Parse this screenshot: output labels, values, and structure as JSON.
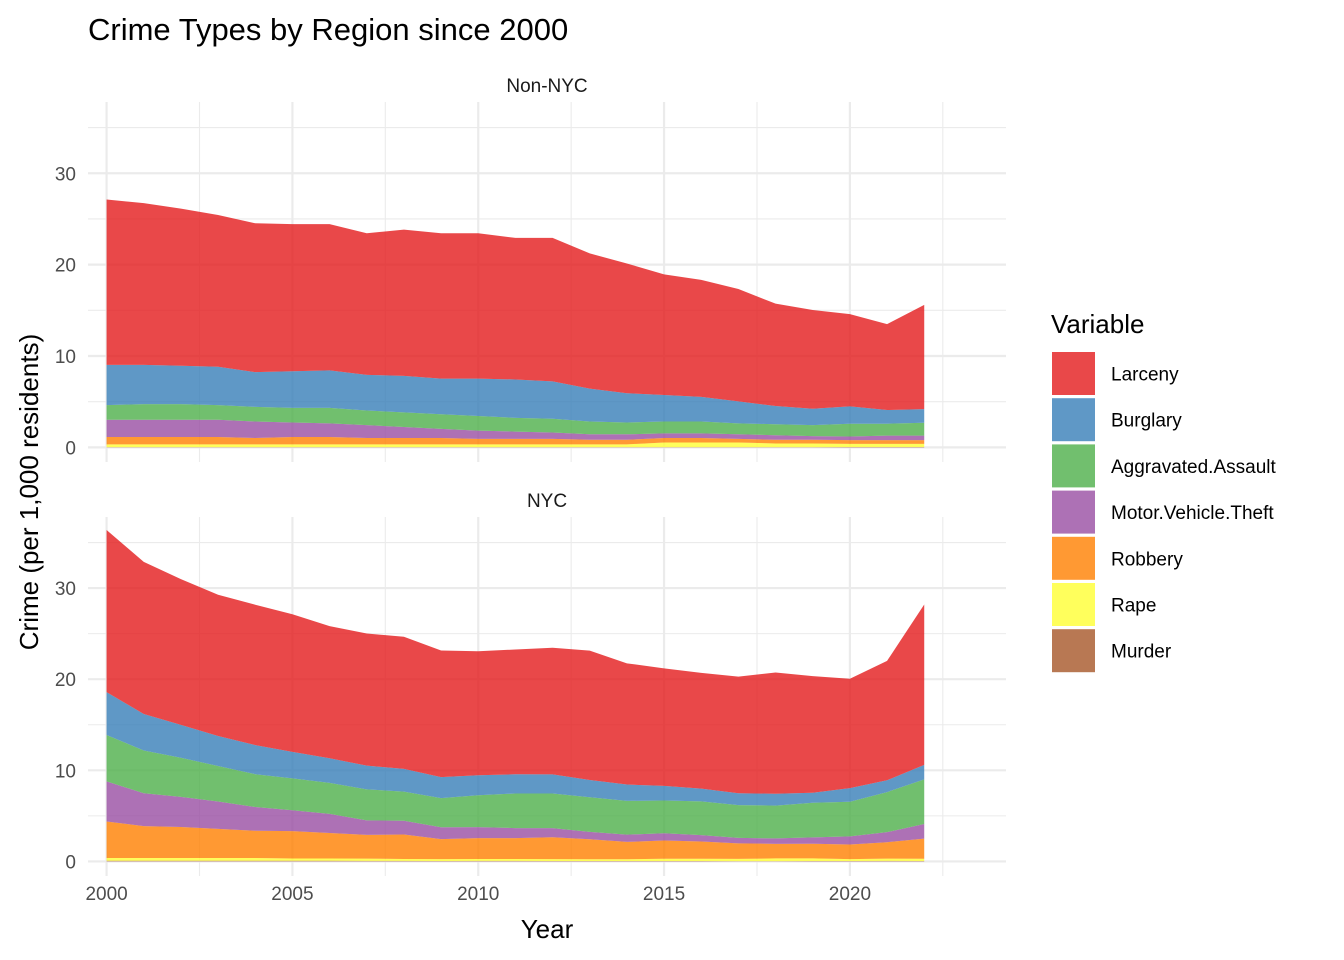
{
  "chart_data": {
    "type": "area",
    "stacked": true,
    "title": "Crime Types by Region since 2000",
    "xlabel": "Year",
    "ylabel": "Crime (per 1,000 residents)",
    "xlim": [
      1999.5,
      2024.2
    ],
    "ylim": [
      -1.6,
      37.8
    ],
    "x_ticks": [
      2000,
      2005,
      2010,
      2015,
      2020
    ],
    "y_ticks": [
      0,
      10,
      20,
      30
    ],
    "grid": true,
    "legend": {
      "title": "Variable",
      "position": "right",
      "items": [
        {
          "name": "Larceny",
          "color": "#E41A1C"
        },
        {
          "name": "Burglary",
          "color": "#377EB8"
        },
        {
          "name": "Aggravated.Assault",
          "color": "#4DAF4A"
        },
        {
          "name": "Motor.Vehicle.Theft",
          "color": "#984EA3"
        },
        {
          "name": "Robbery",
          "color": "#FF7F00"
        },
        {
          "name": "Rape",
          "color": "#FFFF33"
        },
        {
          "name": "Murder",
          "color": "#A65628"
        }
      ]
    },
    "x": [
      2000,
      2001,
      2002,
      2003,
      2004,
      2005,
      2006,
      2007,
      2008,
      2009,
      2010,
      2011,
      2012,
      2013,
      2014,
      2015,
      2016,
      2017,
      2018,
      2019,
      2020,
      2021,
      2022
    ],
    "stack_order": [
      "Murder",
      "Rape",
      "Robbery",
      "Motor.Vehicle.Theft",
      "Aggravated.Assault",
      "Burglary",
      "Larceny"
    ],
    "panels": [
      {
        "label": "Non-NYC",
        "series": [
          {
            "name": "Murder",
            "values": [
              0.03,
              0.03,
              0.03,
              0.03,
              0.03,
              0.03,
              0.03,
              0.03,
              0.03,
              0.03,
              0.03,
              0.03,
              0.03,
              0.03,
              0.03,
              0.03,
              0.03,
              0.03,
              0.03,
              0.03,
              0.04,
              0.04,
              0.04
            ]
          },
          {
            "name": "Rape",
            "values": [
              0.3,
              0.3,
              0.3,
              0.3,
              0.3,
              0.3,
              0.3,
              0.3,
              0.3,
              0.3,
              0.3,
              0.3,
              0.3,
              0.3,
              0.3,
              0.5,
              0.5,
              0.5,
              0.4,
              0.4,
              0.35,
              0.35,
              0.35
            ]
          },
          {
            "name": "Robbery",
            "values": [
              0.8,
              0.8,
              0.8,
              0.8,
              0.7,
              0.8,
              0.8,
              0.7,
              0.7,
              0.7,
              0.6,
              0.6,
              0.6,
              0.5,
              0.5,
              0.5,
              0.5,
              0.4,
              0.4,
              0.4,
              0.4,
              0.4,
              0.4
            ]
          },
          {
            "name": "Motor.Vehicle.Theft",
            "values": [
              1.9,
              1.9,
              1.9,
              1.9,
              1.8,
              1.6,
              1.5,
              1.4,
              1.2,
              1.0,
              0.9,
              0.8,
              0.7,
              0.6,
              0.6,
              0.5,
              0.5,
              0.5,
              0.5,
              0.4,
              0.4,
              0.5,
              0.5
            ]
          },
          {
            "name": "Aggravated.Assault",
            "values": [
              1.6,
              1.7,
              1.7,
              1.6,
              1.6,
              1.6,
              1.7,
              1.6,
              1.6,
              1.6,
              1.6,
              1.5,
              1.5,
              1.4,
              1.3,
              1.3,
              1.3,
              1.2,
              1.2,
              1.2,
              1.4,
              1.3,
              1.4
            ]
          },
          {
            "name": "Burglary",
            "values": [
              4.4,
              4.3,
              4.2,
              4.2,
              3.8,
              4.0,
              4.1,
              3.9,
              4.0,
              3.9,
              4.1,
              4.2,
              4.1,
              3.6,
              3.2,
              2.9,
              2.7,
              2.4,
              2.0,
              1.8,
              1.9,
              1.5,
              1.5
            ]
          },
          {
            "name": "Larceny",
            "values": [
              18.1,
              17.7,
              17.2,
              16.6,
              16.3,
              16.1,
              16.0,
              15.5,
              16.0,
              15.9,
              15.9,
              15.5,
              15.7,
              14.8,
              14.2,
              13.2,
              12.8,
              12.3,
              11.2,
              10.8,
              10.1,
              9.4,
              11.4
            ]
          }
        ]
      },
      {
        "label": "NYC",
        "series": [
          {
            "name": "Murder",
            "values": [
              0.08,
              0.08,
              0.08,
              0.07,
              0.07,
              0.07,
              0.07,
              0.06,
              0.06,
              0.05,
              0.06,
              0.06,
              0.05,
              0.04,
              0.04,
              0.04,
              0.04,
              0.03,
              0.03,
              0.04,
              0.05,
              0.06,
              0.05
            ]
          },
          {
            "name": "Rape",
            "values": [
              0.3,
              0.3,
              0.3,
              0.3,
              0.3,
              0.25,
              0.25,
              0.25,
              0.2,
              0.2,
              0.2,
              0.2,
              0.2,
              0.2,
              0.2,
              0.25,
              0.25,
              0.25,
              0.3,
              0.3,
              0.2,
              0.25,
              0.25
            ]
          },
          {
            "name": "Robbery",
            "values": [
              4.0,
              3.5,
              3.4,
              3.2,
              3.0,
              3.0,
              2.8,
              2.6,
              2.7,
              2.2,
              2.3,
              2.3,
              2.4,
              2.2,
              1.9,
              2.0,
              1.9,
              1.7,
              1.6,
              1.6,
              1.6,
              1.8,
              2.2
            ]
          },
          {
            "name": "Motor.Vehicle.Theft",
            "values": [
              4.4,
              3.6,
              3.3,
              3.0,
              2.6,
              2.3,
              2.1,
              1.6,
              1.5,
              1.3,
              1.2,
              1.1,
              1.0,
              0.8,
              0.8,
              0.8,
              0.7,
              0.6,
              0.6,
              0.7,
              0.9,
              1.1,
              1.6
            ]
          },
          {
            "name": "Aggravated.Assault",
            "values": [
              5.1,
              4.7,
              4.3,
              3.9,
              3.6,
              3.5,
              3.4,
              3.4,
              3.2,
              3.2,
              3.5,
              3.8,
              3.8,
              3.8,
              3.7,
              3.6,
              3.7,
              3.6,
              3.6,
              3.8,
              3.8,
              4.4,
              4.9
            ]
          },
          {
            "name": "Burglary",
            "values": [
              4.7,
              4.0,
              3.6,
              3.3,
              3.2,
              2.9,
              2.7,
              2.6,
              2.5,
              2.3,
              2.2,
              2.1,
              2.1,
              1.9,
              1.8,
              1.6,
              1.4,
              1.3,
              1.3,
              1.1,
              1.5,
              1.3,
              1.6
            ]
          },
          {
            "name": "Larceny",
            "values": [
              17.8,
              16.7,
              16.0,
              15.5,
              15.4,
              15.1,
              14.5,
              14.5,
              14.5,
              13.9,
              13.6,
              13.7,
              13.9,
              14.2,
              13.3,
              12.9,
              12.7,
              12.8,
              13.3,
              12.8,
              12.0,
              13.1,
              17.6
            ]
          }
        ]
      }
    ]
  }
}
